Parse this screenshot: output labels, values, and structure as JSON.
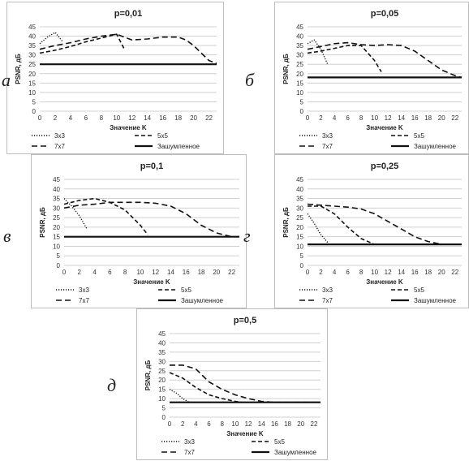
{
  "chart_data": [
    {
      "type": "line",
      "panel_letter": "а",
      "title": "p=0,01",
      "xlabel": "Значение K",
      "ylabel": "PSNR, дБ",
      "xlim": [
        0,
        23
      ],
      "ylim": [
        0,
        45
      ],
      "xticks": [
        "0",
        "2",
        "4",
        "6",
        "8",
        "10",
        "12",
        "14",
        "16",
        "18",
        "20",
        "22"
      ],
      "yticks": [
        "0",
        "5",
        "10",
        "15",
        "20",
        "25",
        "30",
        "35",
        "40",
        "45"
      ],
      "legend": [
        "3x3",
        "5x5",
        "7x7",
        "Зашумленное"
      ],
      "series": [
        {
          "name": "3x3",
          "x": [
            0,
            1,
            2,
            3
          ],
          "y": [
            36,
            39.5,
            42,
            37
          ]
        },
        {
          "name": "5x5",
          "x": [
            0,
            2,
            4,
            6,
            8,
            10,
            11
          ],
          "y": [
            31,
            32.5,
            34.5,
            37,
            39,
            41,
            33
          ]
        },
        {
          "name": "7x7",
          "x": [
            0,
            2,
            4,
            6,
            8,
            10,
            12,
            14,
            16,
            18,
            19,
            20,
            22,
            23
          ],
          "y": [
            33,
            35,
            36.5,
            38.5,
            40,
            41,
            38,
            38.5,
            39.5,
            39.5,
            38,
            35,
            27,
            25.5
          ]
        },
        {
          "name": "Зашумленное",
          "x": [
            0,
            23
          ],
          "y": [
            25,
            25
          ]
        }
      ]
    },
    {
      "type": "line",
      "panel_letter": "б",
      "title": "p=0,05",
      "xlabel": "Значение K",
      "ylabel": "PSNR, дБ",
      "xlim": [
        0,
        23
      ],
      "ylim": [
        0,
        45
      ],
      "xticks": [
        "0",
        "2",
        "4",
        "6",
        "8",
        "10",
        "12",
        "14",
        "16",
        "18",
        "20",
        "22"
      ],
      "yticks": [
        "0",
        "5",
        "10",
        "15",
        "20",
        "25",
        "30",
        "35",
        "40",
        "45"
      ],
      "legend": [
        "3x3",
        "5x5",
        "7x7",
        "Зашумленное"
      ],
      "series": [
        {
          "name": "3x3",
          "x": [
            0,
            1,
            2,
            3
          ],
          "y": [
            36,
            38,
            33,
            25
          ]
        },
        {
          "name": "5x5",
          "x": [
            0,
            2,
            4,
            6,
            8,
            10,
            11
          ],
          "y": [
            31,
            32,
            33.5,
            35,
            35,
            27,
            21
          ]
        },
        {
          "name": "7x7",
          "x": [
            0,
            2,
            4,
            6,
            8,
            10,
            12,
            14,
            16,
            18,
            20,
            22,
            23
          ],
          "y": [
            33,
            34.5,
            36,
            36.5,
            35.5,
            35,
            35.5,
            35,
            32,
            27,
            22,
            19,
            18
          ]
        },
        {
          "name": "Зашумленное",
          "x": [
            0,
            23
          ],
          "y": [
            18,
            18
          ]
        }
      ]
    },
    {
      "type": "line",
      "panel_letter": "в",
      "title": "p=0,1",
      "xlabel": "Значение K",
      "ylabel": "PSNR, дБ",
      "xlim": [
        0,
        23
      ],
      "ylim": [
        0,
        45
      ],
      "xticks": [
        "0",
        "2",
        "4",
        "6",
        "8",
        "10",
        "12",
        "14",
        "16",
        "18",
        "20",
        "22"
      ],
      "yticks": [
        "0",
        "5",
        "10",
        "15",
        "20",
        "25",
        "30",
        "35",
        "40",
        "45"
      ],
      "legend": [
        "3x3",
        "5x5",
        "7x7",
        "Зашумленное"
      ],
      "series": [
        {
          "name": "3x3",
          "x": [
            0,
            1,
            2,
            3
          ],
          "y": [
            35,
            31,
            26,
            19
          ]
        },
        {
          "name": "5x5",
          "x": [
            0,
            2,
            4,
            6,
            8,
            10,
            11
          ],
          "y": [
            32,
            34,
            35,
            33,
            29,
            21,
            16
          ]
        },
        {
          "name": "7x7",
          "x": [
            0,
            2,
            4,
            6,
            8,
            10,
            12,
            14,
            16,
            18,
            20,
            22,
            23
          ],
          "y": [
            30,
            31.5,
            32,
            33,
            33,
            33,
            32.5,
            31,
            27,
            21,
            17,
            15,
            15
          ]
        },
        {
          "name": "Зашумленное",
          "x": [
            0,
            23
          ],
          "y": [
            15,
            15
          ]
        }
      ]
    },
    {
      "type": "line",
      "panel_letter": "г",
      "title": "p=0,25",
      "xlabel": "Значение K",
      "ylabel": "PSNR, дБ",
      "xlim": [
        0,
        23
      ],
      "ylim": [
        0,
        45
      ],
      "xticks": [
        "0",
        "2",
        "4",
        "6",
        "8",
        "10",
        "12",
        "14",
        "16",
        "18",
        "20",
        "22"
      ],
      "yticks": [
        "0",
        "5",
        "10",
        "15",
        "20",
        "25",
        "30",
        "35",
        "40",
        "45"
      ],
      "legend": [
        "3x3",
        "5x5",
        "7x7",
        "Зашумленное"
      ],
      "series": [
        {
          "name": "3x3",
          "x": [
            0,
            1,
            2,
            3
          ],
          "y": [
            27,
            22,
            16,
            12
          ]
        },
        {
          "name": "5x5",
          "x": [
            0,
            2,
            4,
            6,
            8,
            10,
            11
          ],
          "y": [
            31,
            31,
            27,
            20,
            14,
            11,
            11
          ]
        },
        {
          "name": "7x7",
          "x": [
            0,
            2,
            4,
            6,
            8,
            10,
            12,
            14,
            16,
            18,
            20,
            22,
            23
          ],
          "y": [
            32,
            31.5,
            31,
            30.5,
            29.5,
            27,
            23,
            19,
            15,
            12.5,
            11,
            11,
            11
          ]
        },
        {
          "name": "Зашумленное",
          "x": [
            0,
            23
          ],
          "y": [
            11,
            11
          ]
        }
      ]
    },
    {
      "type": "line",
      "panel_letter": "д",
      "title": "p=0,5",
      "xlabel": "Значение K",
      "ylabel": "PSNR, дБ",
      "xlim": [
        0,
        23
      ],
      "ylim": [
        0,
        45
      ],
      "xticks": [
        "0",
        "2",
        "4",
        "6",
        "8",
        "10",
        "12",
        "14",
        "16",
        "18",
        "20",
        "22"
      ],
      "yticks": [
        "0",
        "5",
        "10",
        "15",
        "20",
        "25",
        "30",
        "35",
        "40",
        "45"
      ],
      "legend": [
        "3x3",
        "5x5",
        "7x7",
        "Зашумленное"
      ],
      "series": [
        {
          "name": "3x3",
          "x": [
            0,
            1,
            2,
            3
          ],
          "y": [
            15,
            13,
            10,
            8
          ]
        },
        {
          "name": "5x5",
          "x": [
            0,
            2,
            4,
            6,
            8,
            10,
            11
          ],
          "y": [
            24,
            21,
            16,
            12,
            10,
            8.5,
            8
          ]
        },
        {
          "name": "7x7",
          "x": [
            0,
            2,
            4,
            6,
            8,
            10,
            12,
            14,
            16,
            18,
            20,
            22,
            23
          ],
          "y": [
            28,
            28,
            26,
            19,
            15,
            12,
            10,
            8.5,
            8,
            8,
            8,
            8,
            8
          ]
        },
        {
          "name": "Зашумленное",
          "x": [
            0,
            23
          ],
          "y": [
            8,
            8
          ]
        }
      ]
    }
  ]
}
